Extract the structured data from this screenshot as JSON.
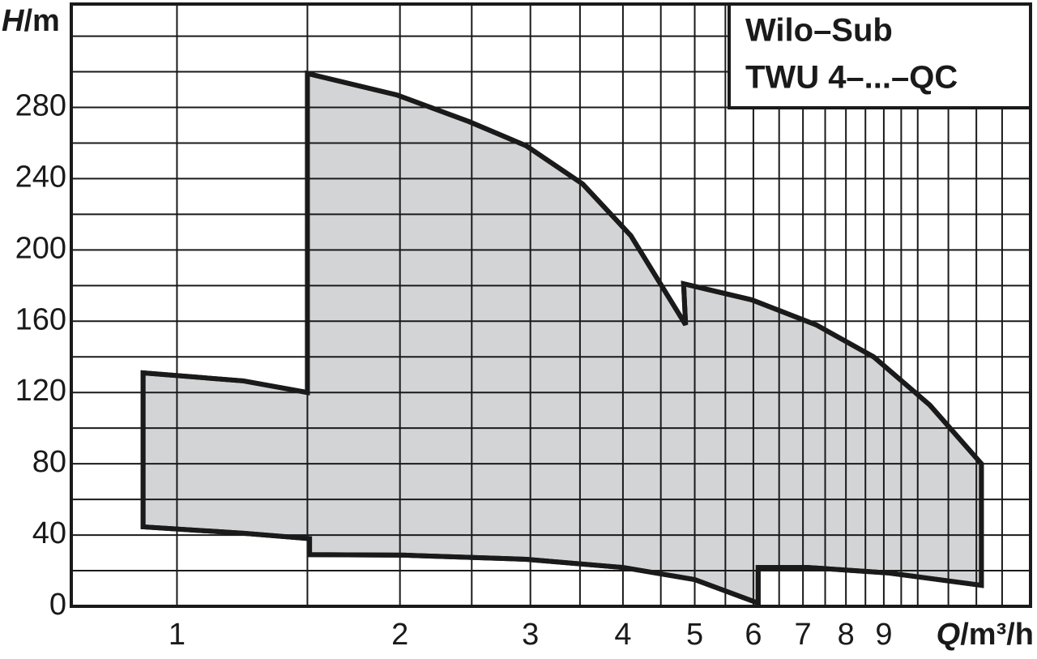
{
  "chart_data": {
    "type": "area",
    "title": [
      "Wilo–Sub",
      "TWU 4–...–QC"
    ],
    "y_label": {
      "symbol": "H",
      "unit": "/m"
    },
    "x_label": {
      "symbol": "Q",
      "unit": "/m³/h"
    },
    "log_x": true,
    "xlim": [
      0.72,
      14.2
    ],
    "xticks": [
      1,
      2,
      3,
      4,
      5,
      6,
      7,
      8,
      9
    ],
    "xminor": [
      1.5,
      2.5,
      3.5,
      4.5,
      5.5,
      6.5,
      7.5,
      8.5,
      9.5,
      10,
      11,
      12,
      13
    ],
    "ylim": [
      0,
      338
    ],
    "yticks": [
      0,
      40,
      80,
      120,
      160,
      200,
      240,
      280
    ],
    "yminor": [
      20,
      60,
      100,
      140,
      180,
      220,
      260,
      300,
      320
    ],
    "grid": true,
    "color": "#d3d4d6",
    "x": [
      0.9,
      1.23,
      1.5,
      1.5,
      1.98,
      2.48,
      2.96,
      3.53,
      4.1,
      4.86,
      4.83,
      5.97,
      7.29,
      8.72,
      10.38,
      12.19,
      12.19,
      9.14,
      7.11,
      6.09,
      6.09,
      5.0,
      4.0,
      2.96,
      2.03,
      1.51,
      1.51,
      1.23,
      0.9
    ],
    "values": [
      131,
      126.5,
      120,
      299,
      287,
      272,
      258.5,
      237,
      208,
      158,
      181,
      172,
      158,
      140,
      113,
      80,
      11.8,
      18.7,
      21.8,
      21.8,
      1.8,
      15,
      21.8,
      26.4,
      28.7,
      29,
      38,
      41,
      44.6
    ]
  }
}
